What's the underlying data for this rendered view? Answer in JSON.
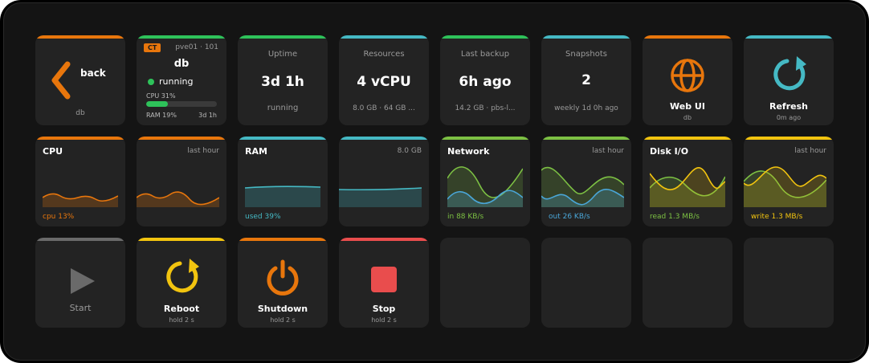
{
  "colors": {
    "orange": "#e8760c",
    "green": "#2ec25a",
    "teal": "#45b9c4",
    "lime": "#7cc043",
    "yellow": "#f2c40f",
    "gray": "#6a6a6a",
    "red": "#e94d4d",
    "blue": "#4aa6d8"
  },
  "back": {
    "label": "back",
    "sub": "db",
    "icon": "chevron-left-icon"
  },
  "container": {
    "badge": "CT",
    "host": "pve01 · 101",
    "name": "db",
    "status": "running",
    "cpu_label": "CPU 31%",
    "cpu_fraction": 0.31,
    "ram_label": "RAM 19%",
    "uptime_label": "3d 1h"
  },
  "uptime": {
    "title": "Uptime",
    "value": "3d 1h",
    "sub": "running"
  },
  "resources": {
    "title": "Resources",
    "value": "4 vCPU",
    "sub": "8.0 GB · 64 GB ..."
  },
  "backup": {
    "title": "Last backup",
    "value": "6h ago",
    "sub": "14.2 GB · pbs-l..."
  },
  "snapshots": {
    "title": "Snapshots",
    "value": "2",
    "sub": "weekly 1d 0h ago"
  },
  "webui": {
    "label": "Web UI",
    "sub": "db",
    "icon": "globe-icon"
  },
  "refresh": {
    "label": "Refresh",
    "sub": "0m ago",
    "icon": "refresh-icon"
  },
  "charts": {
    "cpu": {
      "title": "CPU",
      "range": "last hour",
      "foot": "cpu 13%"
    },
    "ram": {
      "title": "RAM",
      "range": "8.0 GB",
      "foot": "used 39%"
    },
    "network": {
      "title": "Network",
      "range": "last hour",
      "foot_in": "in 88 KB/s",
      "foot_out": "out 26 KB/s"
    },
    "disk": {
      "title": "Disk I/O",
      "range": "last hour",
      "foot_read": "read 1.3 MB/s",
      "foot_write": "write 1.3 MB/s"
    }
  },
  "start": {
    "label": "Start",
    "icon": "play-icon"
  },
  "reboot": {
    "label": "Reboot",
    "sub": "hold 2 s",
    "icon": "restart-icon"
  },
  "shutdown": {
    "label": "Shutdown",
    "sub": "hold 2 s",
    "icon": "power-icon"
  },
  "stop": {
    "label": "Stop",
    "sub": "hold 2 s",
    "icon": "stop-icon"
  }
}
